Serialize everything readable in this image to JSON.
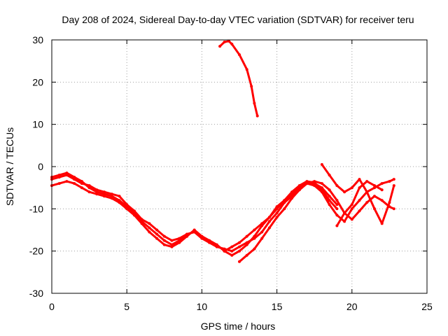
{
  "chart_data": {
    "type": "line",
    "title": "Day 208 of 2024, Sidereal Day-to-day VTEC variation (SDTVAR) for receiver teru",
    "xlabel": "GPS time / hours",
    "ylabel": "SDTVAR / TECUs",
    "xlim": [
      0,
      25
    ],
    "ylim": [
      -30,
      30
    ],
    "xticks": [
      0,
      5,
      10,
      15,
      20,
      25
    ],
    "yticks": [
      -30,
      -20,
      -10,
      0,
      10,
      20,
      30
    ],
    "grid": true,
    "legend": "none",
    "color": "#ff0000",
    "series": [
      {
        "name": "trace-1",
        "x": [
          0.0,
          0.5,
          1.0,
          1.5,
          2.0,
          2.5,
          3.0,
          3.5,
          4.0,
          4.5,
          5.0,
          5.5,
          6.0,
          6.5,
          7.0,
          7.5,
          8.0,
          8.5,
          9.0,
          9.5,
          10.0,
          10.5,
          11.0,
          11.5,
          12.0,
          12.5,
          13.0,
          13.5,
          14.0,
          14.5,
          15.0,
          15.5,
          16.0,
          16.5,
          17.0,
          17.5,
          18.0,
          18.5,
          19.0
        ],
        "y": [
          -3.0,
          -2.5,
          -2.0,
          -3.0,
          -4.0,
          -4.5,
          -5.5,
          -6.0,
          -6.5,
          -7.0,
          -9.0,
          -10.5,
          -12.5,
          -13.5,
          -15.0,
          -16.5,
          -17.5,
          -17.0,
          -16.0,
          -15.5,
          -17.0,
          -18.0,
          -19.0,
          -19.5,
          -20.0,
          -19.0,
          -18.0,
          -17.0,
          -15.5,
          -13.0,
          -11.0,
          -8.5,
          -7.0,
          -5.0,
          -4.0,
          -4.0,
          -5.0,
          -7.0,
          -9.0
        ]
      },
      {
        "name": "trace-2",
        "x": [
          0.0,
          0.5,
          1.0,
          1.5,
          2.0,
          2.5,
          3.0,
          3.5,
          4.0,
          4.5,
          5.0,
          5.5,
          6.0,
          6.5,
          7.0,
          7.5,
          8.0,
          8.5,
          9.0,
          9.5,
          10.0,
          10.5,
          11.0,
          11.5,
          12.0,
          12.5,
          13.0,
          13.5,
          14.0,
          14.5,
          15.0,
          15.5,
          16.0,
          16.5,
          17.0,
          17.5,
          18.0,
          18.5,
          19.0
        ],
        "y": [
          -4.5,
          -4.0,
          -3.5,
          -4.0,
          -5.0,
          -6.0,
          -6.5,
          -7.0,
          -7.5,
          -8.5,
          -10.0,
          -11.5,
          -13.5,
          -15.5,
          -17.0,
          -18.5,
          -19.0,
          -18.0,
          -16.5,
          -15.0,
          -16.5,
          -17.5,
          -18.5,
          -20.0,
          -21.0,
          -20.0,
          -18.5,
          -16.5,
          -14.0,
          -12.0,
          -10.0,
          -8.0,
          -6.0,
          -4.5,
          -3.5,
          -3.8,
          -5.5,
          -8.0,
          -10.0
        ]
      },
      {
        "name": "trace-3",
        "x": [
          0.0,
          0.5,
          1.0,
          1.5,
          2.0,
          2.5,
          3.0,
          3.5,
          4.0,
          4.5,
          5.0,
          5.5,
          6.0,
          6.5,
          7.0,
          7.5,
          8.0,
          8.5,
          9.0
        ],
        "y": [
          -2.5,
          -2.0,
          -1.5,
          -2.5,
          -3.5,
          -5.0,
          -6.0,
          -6.5,
          -7.0,
          -8.0,
          -9.5,
          -11.0,
          -13.0,
          -14.5,
          -16.0,
          -17.5,
          -18.5,
          -17.5,
          -16.5
        ]
      },
      {
        "name": "trace-4",
        "x": [
          11.5,
          12.0,
          12.5,
          13.0,
          13.5,
          14.0,
          14.5,
          15.0,
          15.5,
          16.0,
          16.5,
          17.0,
          17.5,
          18.0,
          18.5,
          19.0,
          19.5,
          20.0,
          20.5,
          21.0,
          21.5,
          22.0,
          22.5,
          22.8
        ],
        "y": [
          -20.0,
          -19.0,
          -18.0,
          -16.5,
          -15.0,
          -13.5,
          -12.0,
          -9.5,
          -8.0,
          -6.5,
          -5.0,
          -4.0,
          -4.5,
          -6.0,
          -9.0,
          -11.5,
          -13.0,
          -10.0,
          -8.0,
          -6.0,
          -5.0,
          -4.0,
          -3.5,
          -3.0
        ]
      },
      {
        "name": "trace-5",
        "x": [
          12.5,
          13.0,
          13.5,
          14.0,
          14.5,
          15.0,
          15.5,
          16.0,
          16.5,
          17.0,
          17.5,
          18.0,
          18.5,
          19.0,
          19.5,
          20.0,
          20.5,
          21.0,
          21.5,
          22.0,
          22.5,
          22.8
        ],
        "y": [
          -22.5,
          -21.0,
          -19.5,
          -17.0,
          -14.5,
          -12.0,
          -10.0,
          -7.5,
          -5.5,
          -4.0,
          -3.5,
          -4.0,
          -5.5,
          -8.0,
          -11.0,
          -12.5,
          -10.5,
          -8.5,
          -7.0,
          -8.0,
          -9.5,
          -10.0
        ]
      },
      {
        "name": "trace-6",
        "x": [
          18.0,
          18.5,
          19.0,
          19.5,
          20.0,
          20.5,
          21.0,
          21.5,
          22.0,
          22.5,
          22.8
        ],
        "y": [
          0.5,
          -2.0,
          -4.5,
          -6.0,
          -5.0,
          -3.0,
          -6.0,
          -10.0,
          -13.5,
          -8.5,
          -4.5
        ]
      },
      {
        "name": "trace-7",
        "x": [
          19.0,
          19.5,
          20.0,
          20.5,
          21.0,
          21.5,
          22.0
        ],
        "y": [
          -14.0,
          -11.0,
          -9.0,
          -5.0,
          -3.5,
          -4.5,
          -5.5
        ]
      },
      {
        "name": "trace-8",
        "x": [
          11.2,
          11.5,
          11.8,
          12.0,
          12.5,
          13.0,
          13.3,
          13.5,
          13.7
        ],
        "y": [
          28.5,
          29.5,
          29.7,
          29.0,
          26.5,
          23.0,
          19.0,
          15.0,
          12.0
        ]
      }
    ]
  }
}
